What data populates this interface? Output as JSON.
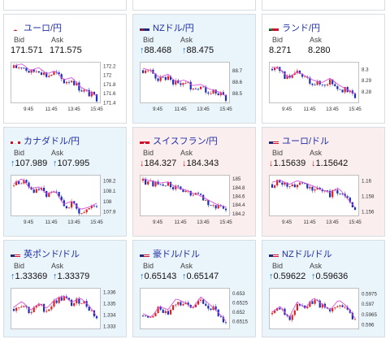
{
  "cards": [
    {
      "flag": "jp",
      "title": "ユーロ/円",
      "state": "flat",
      "bid_label": "Bid",
      "ask_label": "Ask",
      "bid_dir": "",
      "ask_dir": "",
      "bid": "171.571",
      "ask": "171.575",
      "yticks": [
        "172.2",
        "172",
        "171.8",
        "171.6",
        "171.4"
      ],
      "xticks": [
        "9:45",
        "11:45",
        "13:45",
        "15:45"
      ],
      "trend": [
        172.15,
        172.2,
        172.05,
        172.12,
        171.98,
        172.05,
        171.85,
        171.9,
        171.7,
        171.6,
        171.5
      ],
      "ymin": 171.4,
      "ymax": 172.25
    },
    {
      "flag": "nz",
      "title": "NZドル/円",
      "state": "up",
      "bid_label": "Bid",
      "ask_label": "Ask",
      "bid_dir": "up",
      "ask_dir": "up",
      "bid": "88.468",
      "ask": "88.475",
      "yticks": [
        "88.7",
        "88.6",
        "88.5"
      ],
      "xticks": [
        "9:45",
        "11:45",
        "13:45",
        "15:45"
      ],
      "trend": [
        88.7,
        88.68,
        88.62,
        88.65,
        88.58,
        88.6,
        88.55,
        88.56,
        88.52,
        88.5,
        88.46
      ],
      "ymin": 88.42,
      "ymax": 88.76
    },
    {
      "flag": "za",
      "title": "ランド/円",
      "state": "flat",
      "bid_label": "Bid",
      "ask_label": "Ask",
      "bid_dir": "",
      "ask_dir": "",
      "bid": "8.271",
      "ask": "8.280",
      "yticks": [
        "8.3",
        "8.29",
        "8.28"
      ],
      "xticks": [
        "9:45",
        "11:45",
        "13:45",
        "15:45"
      ],
      "trend": [
        8.3,
        8.298,
        8.29,
        8.296,
        8.292,
        8.288,
        8.286,
        8.29,
        8.284,
        8.28,
        8.276
      ],
      "ymin": 8.27,
      "ymax": 8.305
    },
    {
      "flag": "ca",
      "title": "カナダドル/円",
      "state": "up",
      "bid_label": "Bid",
      "ask_label": "Ask",
      "bid_dir": "up",
      "ask_dir": "up",
      "bid": "107.989",
      "ask": "107.995",
      "yticks": [
        "108.2",
        "108.1",
        "108",
        "107.9"
      ],
      "xticks": [
        "9:45",
        "11:45",
        "13:45",
        "15:45"
      ],
      "trend": [
        108.15,
        108.2,
        108.1,
        108.12,
        108.05,
        108.08,
        107.95,
        107.98,
        107.9,
        107.92,
        107.96
      ],
      "ymin": 107.86,
      "ymax": 108.24
    },
    {
      "flag": "ch",
      "title": "スイスフラン/円",
      "state": "down",
      "bid_label": "Bid",
      "ask_label": "Ask",
      "bid_dir": "down",
      "ask_dir": "down",
      "bid": "184.327",
      "ask": "184.343",
      "yticks": [
        "185",
        "184.8",
        "184.6",
        "184.4",
        "184.2"
      ],
      "xticks": [
        "9:45",
        "11:45",
        "13:45",
        "15:45"
      ],
      "trend": [
        184.95,
        184.9,
        184.85,
        184.88,
        184.75,
        184.7,
        184.62,
        184.55,
        184.45,
        184.35,
        184.3
      ],
      "ymin": 184.15,
      "ymax": 185.05
    },
    {
      "flag": "eu",
      "title": "ユーロ/ドル",
      "state": "down",
      "bid_label": "Bid",
      "ask_label": "Ask",
      "bid_dir": "down",
      "ask_dir": "down",
      "bid": "1.15639",
      "ask": "1.15642",
      "yticks": [
        "1.16",
        "1.158",
        "1.156"
      ],
      "xticks": [
        "9:45",
        "11:45",
        "13:45",
        "15:45"
      ],
      "trend": [
        1.1595,
        1.1598,
        1.1592,
        1.1597,
        1.1594,
        1.159,
        1.1585,
        1.1582,
        1.1588,
        1.1575,
        1.1563
      ],
      "ymin": 1.1555,
      "ymax": 1.1605
    },
    {
      "flag": "gb",
      "title": "英ポンド/ドル",
      "state": "up",
      "bid_label": "Bid",
      "ask_label": "Ask",
      "bid_dir": "up",
      "ask_dir": "up",
      "bid": "1.33369",
      "ask": "1.33379",
      "yticks": [
        "1.336",
        "1.335",
        "1.334",
        "1.333"
      ],
      "xticks": [],
      "trend": [
        1.3345,
        1.335,
        1.3342,
        1.3348,
        1.3344,
        1.3352,
        1.3355,
        1.3349,
        1.3353,
        1.3347,
        1.3337
      ],
      "ymin": 1.3328,
      "ymax": 1.3362
    },
    {
      "flag": "au",
      "title": "豪ドル/ドル",
      "state": "up",
      "bid_label": "Bid",
      "ask_label": "Ask",
      "bid_dir": "up",
      "ask_dir": "up",
      "bid": "0.65143",
      "ask": "0.65147",
      "yticks": [
        "0.653",
        "0.6525",
        "0.652",
        "0.6515"
      ],
      "xticks": [],
      "trend": [
        0.6518,
        0.6516,
        0.6522,
        0.652,
        0.6526,
        0.6524,
        0.6521,
        0.6527,
        0.6523,
        0.6519,
        0.6514
      ],
      "ymin": 0.6511,
      "ymax": 0.6532
    },
    {
      "flag": "us",
      "title": "NZドル/ドル",
      "state": "up",
      "bid_label": "Bid",
      "ask_label": "Ask",
      "bid_dir": "up",
      "ask_dir": "up",
      "bid": "0.59622",
      "ask": "0.59636",
      "yticks": [
        "0.5975",
        "0.597",
        "0.5965",
        "0.596"
      ],
      "xticks": [],
      "trend": [
        0.5965,
        0.5968,
        0.5962,
        0.597,
        0.5967,
        0.5972,
        0.5969,
        0.5966,
        0.5971,
        0.5968,
        0.5962
      ],
      "ymin": 0.5958,
      "ymax": 0.5977
    }
  ],
  "colors": {
    "up": "#1d6bc7",
    "down": "#d52020",
    "candle_down": "#1a2ebd",
    "candle_up": "#e02020",
    "ma": "#d94fd9",
    "title": "#1f2ea8"
  }
}
